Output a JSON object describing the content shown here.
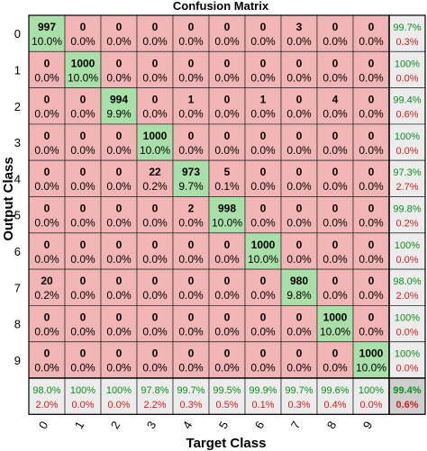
{
  "chart_data": {
    "type": "heatmap",
    "title": "Confusion Matrix",
    "xlabel": "Target Class",
    "ylabel": "Output Class",
    "classes": [
      "0",
      "1",
      "2",
      "3",
      "4",
      "5",
      "6",
      "7",
      "8",
      "9"
    ],
    "counts": [
      [
        997,
        0,
        0,
        0,
        0,
        0,
        0,
        3,
        0,
        0
      ],
      [
        0,
        1000,
        0,
        0,
        0,
        0,
        0,
        0,
        0,
        0
      ],
      [
        0,
        0,
        994,
        0,
        1,
        0,
        1,
        0,
        4,
        0
      ],
      [
        0,
        0,
        0,
        1000,
        0,
        0,
        0,
        0,
        0,
        0
      ],
      [
        0,
        0,
        0,
        22,
        973,
        5,
        0,
        0,
        0,
        0
      ],
      [
        0,
        0,
        0,
        0,
        2,
        998,
        0,
        0,
        0,
        0
      ],
      [
        0,
        0,
        0,
        0,
        0,
        0,
        1000,
        0,
        0,
        0
      ],
      [
        20,
        0,
        0,
        0,
        0,
        0,
        0,
        980,
        0,
        0
      ],
      [
        0,
        0,
        0,
        0,
        0,
        0,
        0,
        0,
        1000,
        0
      ],
      [
        0,
        0,
        0,
        0,
        0,
        0,
        0,
        0,
        0,
        1000
      ]
    ],
    "percentages": [
      [
        "10.0%",
        "0.0%",
        "0.0%",
        "0.0%",
        "0.0%",
        "0.0%",
        "0.0%",
        "0.0%",
        "0.0%",
        "0.0%"
      ],
      [
        "0.0%",
        "10.0%",
        "0.0%",
        "0.0%",
        "0.0%",
        "0.0%",
        "0.0%",
        "0.0%",
        "0.0%",
        "0.0%"
      ],
      [
        "0.0%",
        "0.0%",
        "9.9%",
        "0.0%",
        "0.0%",
        "0.0%",
        "0.0%",
        "0.0%",
        "0.0%",
        "0.0%"
      ],
      [
        "0.0%",
        "0.0%",
        "0.0%",
        "10.0%",
        "0.0%",
        "0.0%",
        "0.0%",
        "0.0%",
        "0.0%",
        "0.0%"
      ],
      [
        "0.0%",
        "0.0%",
        "0.0%",
        "0.2%",
        "9.7%",
        "0.1%",
        "0.0%",
        "0.0%",
        "0.0%",
        "0.0%"
      ],
      [
        "0.0%",
        "0.0%",
        "0.0%",
        "0.0%",
        "0.0%",
        "10.0%",
        "0.0%",
        "0.0%",
        "0.0%",
        "0.0%"
      ],
      [
        "0.0%",
        "0.0%",
        "0.0%",
        "0.0%",
        "0.0%",
        "0.0%",
        "10.0%",
        "0.0%",
        "0.0%",
        "0.0%"
      ],
      [
        "0.2%",
        "0.0%",
        "0.0%",
        "0.0%",
        "0.0%",
        "0.0%",
        "0.0%",
        "9.8%",
        "0.0%",
        "0.0%"
      ],
      [
        "0.0%",
        "0.0%",
        "0.0%",
        "0.0%",
        "0.0%",
        "0.0%",
        "0.0%",
        "0.0%",
        "10.0%",
        "0.0%"
      ],
      [
        "0.0%",
        "0.0%",
        "0.0%",
        "0.0%",
        "0.0%",
        "0.0%",
        "0.0%",
        "0.0%",
        "0.0%",
        "10.0%"
      ]
    ],
    "row_summary": [
      [
        "99.7%",
        "0.3%"
      ],
      [
        "100%",
        "0.0%"
      ],
      [
        "99.4%",
        "0.6%"
      ],
      [
        "100%",
        "0.0%"
      ],
      [
        "97.3%",
        "2.7%"
      ],
      [
        "99.8%",
        "0.2%"
      ],
      [
        "100%",
        "0.0%"
      ],
      [
        "98.0%",
        "2.0%"
      ],
      [
        "100%",
        "0.0%"
      ],
      [
        "100%",
        "0.0%"
      ]
    ],
    "col_summary": [
      [
        "98.0%",
        "2.0%"
      ],
      [
        "100%",
        "0.0%"
      ],
      [
        "100%",
        "0.0%"
      ],
      [
        "97.8%",
        "2.2%"
      ],
      [
        "99.7%",
        "0.3%"
      ],
      [
        "99.5%",
        "0.5%"
      ],
      [
        "99.9%",
        "0.1%"
      ],
      [
        "99.7%",
        "0.3%"
      ],
      [
        "99.6%",
        "0.4%"
      ],
      [
        "100%",
        "0.0%"
      ]
    ],
    "overall": [
      "99.4%",
      "0.6%"
    ],
    "colors": {
      "correct": "#a9dfa9",
      "incorrect": "#f2b5b5",
      "summary": "#ececec",
      "overall": "#cfcfcf",
      "green_text": "#0a8f1e",
      "red_text": "#d11d1d"
    }
  }
}
